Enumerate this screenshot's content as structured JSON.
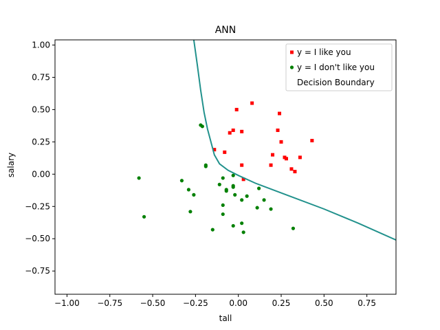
{
  "chart_data": {
    "type": "scatter",
    "title": "ANN",
    "xlabel": "tall",
    "ylabel": "salary",
    "xlim": [
      -1.07,
      0.92
    ],
    "ylim": [
      -0.93,
      1.04
    ],
    "xticks": [
      -1.0,
      -0.75,
      -0.5,
      -0.25,
      0.0,
      0.25,
      0.5,
      0.75
    ],
    "xtick_labels": [
      "−1.00",
      "−0.75",
      "−0.50",
      "−0.25",
      "0.00",
      "0.25",
      "0.50",
      "0.75"
    ],
    "yticks": [
      1.0,
      0.75,
      0.5,
      0.25,
      0.0,
      -0.25,
      -0.5,
      -0.75
    ],
    "ytick_labels": [
      "1.00",
      "0.75",
      "0.50",
      "0.25",
      "0.00",
      "−0.25",
      "−0.50",
      "−0.75"
    ],
    "grid": false,
    "legend_position": "top-right",
    "series": [
      {
        "name": "y = I like you",
        "marker": "square",
        "color": "#ff0000",
        "points": [
          [
            0.08,
            0.55
          ],
          [
            -0.01,
            0.5
          ],
          [
            0.24,
            0.47
          ],
          [
            -0.03,
            0.34
          ],
          [
            0.02,
            0.33
          ],
          [
            -0.05,
            0.32
          ],
          [
            0.23,
            0.34
          ],
          [
            0.43,
            0.26
          ],
          [
            0.25,
            0.25
          ],
          [
            -0.14,
            0.19
          ],
          [
            -0.08,
            0.17
          ],
          [
            0.2,
            0.15
          ],
          [
            0.27,
            0.13
          ],
          [
            0.28,
            0.12
          ],
          [
            0.36,
            0.13
          ],
          [
            0.02,
            0.07
          ],
          [
            0.19,
            0.07
          ],
          [
            0.31,
            0.04
          ],
          [
            0.33,
            0.02
          ],
          [
            0.03,
            -0.04
          ]
        ]
      },
      {
        "name": "y = I don't like you",
        "marker": "circle",
        "color": "#008000",
        "points": [
          [
            -0.22,
            0.38
          ],
          [
            -0.21,
            0.37
          ],
          [
            -0.19,
            0.07
          ],
          [
            -0.19,
            0.06
          ],
          [
            -0.58,
            -0.03
          ],
          [
            -0.33,
            -0.05
          ],
          [
            -0.03,
            -0.01
          ],
          [
            -0.09,
            -0.03
          ],
          [
            -0.11,
            -0.08
          ],
          [
            -0.03,
            -0.09
          ],
          [
            -0.03,
            -0.1
          ],
          [
            0.12,
            -0.11
          ],
          [
            -0.07,
            -0.12
          ],
          [
            -0.07,
            -0.13
          ],
          [
            -0.29,
            -0.12
          ],
          [
            -0.26,
            -0.16
          ],
          [
            -0.02,
            -0.16
          ],
          [
            0.05,
            -0.17
          ],
          [
            0.15,
            -0.2
          ],
          [
            0.02,
            -0.2
          ],
          [
            -0.09,
            -0.24
          ],
          [
            0.11,
            -0.26
          ],
          [
            0.19,
            -0.27
          ],
          [
            -0.28,
            -0.29
          ],
          [
            -0.09,
            -0.31
          ],
          [
            -0.55,
            -0.33
          ],
          [
            0.02,
            -0.38
          ],
          [
            -0.03,
            -0.4
          ],
          [
            0.32,
            -0.42
          ],
          [
            -0.15,
            -0.43
          ],
          [
            0.03,
            -0.45
          ]
        ]
      },
      {
        "name": "Decision Boundary",
        "type": "line",
        "color": "#21918c",
        "points": [
          [
            -0.26,
            1.04
          ],
          [
            -0.24,
            0.85
          ],
          [
            -0.22,
            0.65
          ],
          [
            -0.2,
            0.48
          ],
          [
            -0.18,
            0.35
          ],
          [
            -0.16,
            0.25
          ],
          [
            -0.14,
            0.15
          ],
          [
            -0.11,
            0.08
          ],
          [
            -0.06,
            0.03
          ],
          [
            0.0,
            -0.01
          ],
          [
            0.1,
            -0.07
          ],
          [
            0.3,
            -0.17
          ],
          [
            0.5,
            -0.27
          ],
          [
            0.7,
            -0.38
          ],
          [
            0.92,
            -0.51
          ]
        ]
      }
    ]
  }
}
